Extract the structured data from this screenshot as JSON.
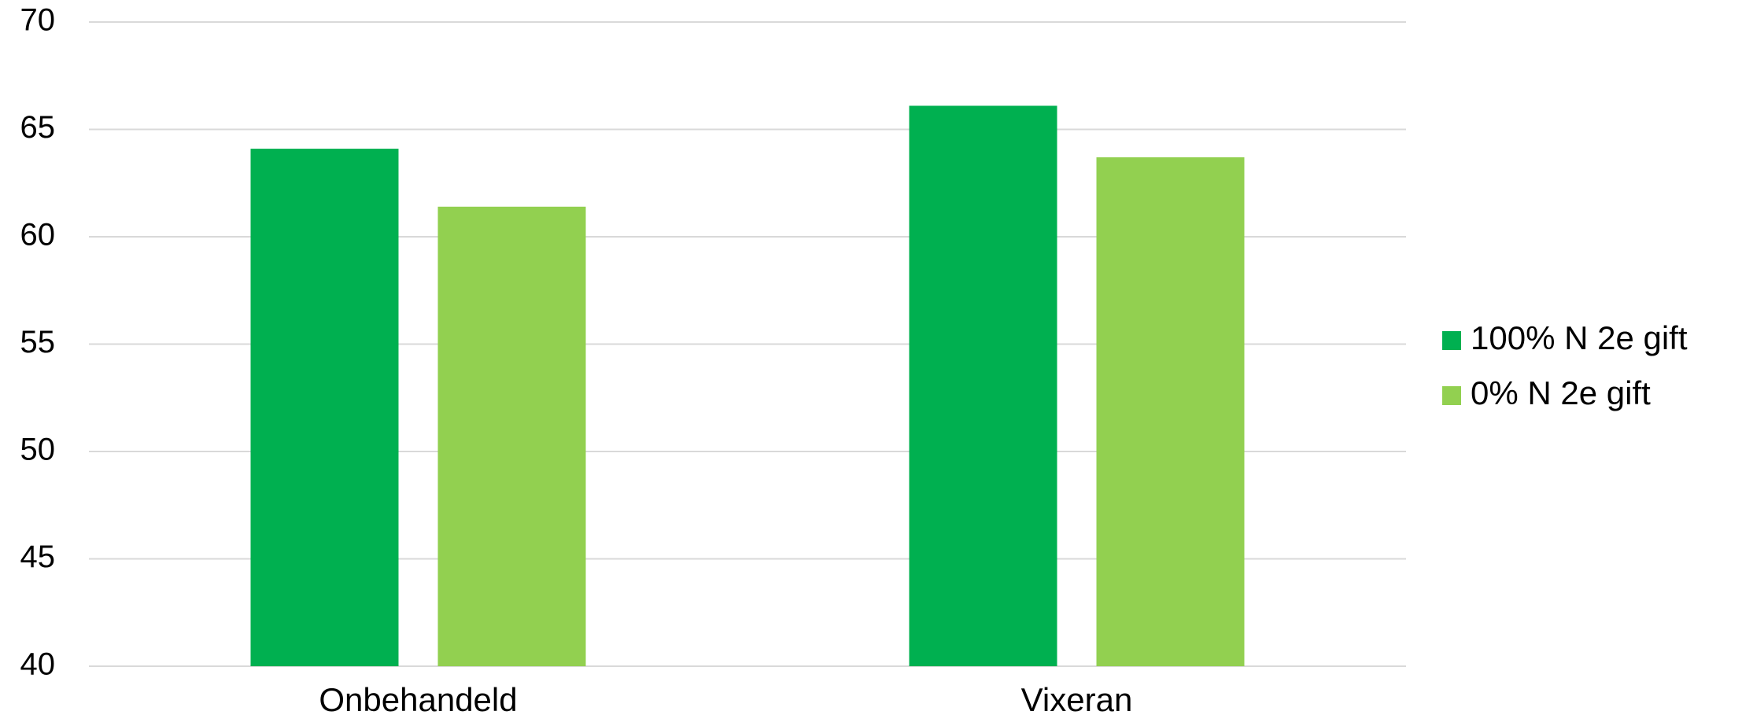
{
  "chart_data": {
    "type": "bar",
    "categories": [
      "Onbehandeld",
      "Vixeran"
    ],
    "series": [
      {
        "name": "100% N 2e gift",
        "values": [
          64.1,
          66.1
        ],
        "color": "#00B050"
      },
      {
        "name": "0% N 2e gift",
        "values": [
          61.4,
          63.7
        ],
        "color": "#92D050"
      }
    ],
    "ylim": [
      40,
      70
    ],
    "yticks": [
      40,
      45,
      50,
      55,
      60,
      65,
      70
    ],
    "grid": true,
    "legend_position": "right"
  }
}
